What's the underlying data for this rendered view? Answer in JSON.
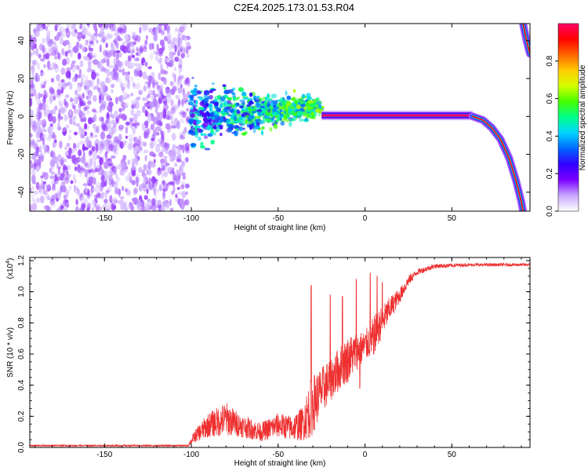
{
  "title": "C2E4.2025.173.01.53.R04",
  "chart_data": [
    {
      "type": "heatmap",
      "name": "spectrogram",
      "xlabel": "Height of straight line (km)",
      "ylabel": "Frequency (Hz)",
      "xlim": [
        -193,
        95
      ],
      "ylim": [
        -50,
        49
      ],
      "xticks": [
        -150,
        -100,
        -50,
        0,
        50
      ],
      "yticks": [
        -40,
        -20,
        0,
        20,
        40
      ],
      "colorbar": {
        "label": "Normalized spectral amplitude",
        "range": [
          0,
          1
        ],
        "ticks": [
          "0.0",
          "0.2",
          "0.4",
          "0.6",
          "0.8"
        ],
        "colormap": [
          "#ffffff",
          "#c9a8ff",
          "#7a00ff",
          "#3300ff",
          "#0066ff",
          "#00d4ff",
          "#00ff8c",
          "#44ff00",
          "#d4ff00",
          "#ffcc00",
          "#ff6600",
          "#ff0000",
          "#ff0066"
        ]
      },
      "regions": {
        "noise": {
          "x": [
            -193,
            -101
          ],
          "freq": [
            -50,
            49
          ],
          "amplitude": [
            0.05,
            0.15
          ]
        },
        "turbulent": {
          "x": [
            -101,
            -25
          ],
          "freq_center": [
            1,
            5
          ],
          "spread": [
            8,
            2
          ],
          "amplitude": [
            0.15,
            0.5
          ]
        },
        "tone": {
          "x": [
            -25,
            62
          ],
          "freq": 0.5,
          "amplitude": 1.0
        },
        "falloff": [
          {
            "x": 62,
            "freq": 0
          },
          {
            "x": 68,
            "freq": -2
          },
          {
            "x": 73,
            "freq": -6
          },
          {
            "x": 78,
            "freq": -12
          },
          {
            "x": 83,
            "freq": -22
          },
          {
            "x": 87,
            "freq": -34
          },
          {
            "x": 90,
            "freq": -45
          },
          {
            "x": 91,
            "freq": -50
          }
        ],
        "alias": [
          {
            "x": 91,
            "freq": 49
          },
          {
            "x": 93,
            "freq": 40
          },
          {
            "x": 95,
            "freq": 33
          }
        ]
      }
    },
    {
      "type": "line",
      "name": "snr",
      "xlabel": "Height of straight line (km)",
      "ylabel": "SNR (10 * v/v)",
      "ylabel_multiplier": "(x10",
      "ylabel_exponent": "4",
      "ylabel_suffix": ")",
      "xlim": [
        -193,
        95
      ],
      "ylim": [
        0,
        1.22
      ],
      "xticks": [
        -150,
        -100,
        -50,
        0,
        50
      ],
      "yticks": [
        "0.0",
        "0.2",
        "0.4",
        "0.6",
        "0.8",
        "1.0",
        "1.2"
      ],
      "color": "#ee3030",
      "envelope": [
        {
          "x": -193,
          "base": 0.01,
          "spread": 0.01
        },
        {
          "x": -102,
          "base": 0.01,
          "spread": 0.01
        },
        {
          "x": -98,
          "base": 0.06,
          "spread": 0.08
        },
        {
          "x": -90,
          "base": 0.12,
          "spread": 0.16
        },
        {
          "x": -80,
          "base": 0.15,
          "spread": 0.22
        },
        {
          "x": -72,
          "base": 0.12,
          "spread": 0.15
        },
        {
          "x": -60,
          "base": 0.08,
          "spread": 0.12
        },
        {
          "x": -50,
          "base": 0.12,
          "spread": 0.16
        },
        {
          "x": -42,
          "base": 0.1,
          "spread": 0.16
        },
        {
          "x": -36,
          "base": 0.12,
          "spread": 0.22
        },
        {
          "x": -31,
          "base": 0.2,
          "spread": 0.4
        },
        {
          "x": -25,
          "base": 0.32,
          "spread": 0.3
        },
        {
          "x": -18,
          "base": 0.42,
          "spread": 0.28
        },
        {
          "x": -10,
          "base": 0.52,
          "spread": 0.3
        },
        {
          "x": -5,
          "base": 0.58,
          "spread": 0.25
        },
        {
          "x": 0,
          "base": 0.62,
          "spread": 0.2
        },
        {
          "x": 5,
          "base": 0.68,
          "spread": 0.25
        },
        {
          "x": 10,
          "base": 0.78,
          "spread": 0.2
        },
        {
          "x": 15,
          "base": 0.88,
          "spread": 0.15
        },
        {
          "x": 20,
          "base": 0.96,
          "spread": 0.1
        },
        {
          "x": 25,
          "base": 1.06,
          "spread": 0.07
        },
        {
          "x": 30,
          "base": 1.12,
          "spread": 0.04
        },
        {
          "x": 40,
          "base": 1.16,
          "spread": 0.03
        },
        {
          "x": 60,
          "base": 1.17,
          "spread": 0.02
        },
        {
          "x": 95,
          "base": 1.17,
          "spread": 0.02
        }
      ],
      "spikes": [
        {
          "x": -31,
          "y": 1.04
        },
        {
          "x": -20,
          "y": 0.98
        },
        {
          "x": -13,
          "y": 0.97
        },
        {
          "x": -5,
          "y": 1.08
        },
        {
          "x": 3,
          "y": 1.12
        },
        {
          "x": 7,
          "y": 1.1
        },
        {
          "x": 10,
          "y": 1.06
        },
        {
          "x": -3,
          "y": 0.38
        },
        {
          "x": 5,
          "y": 0.6
        }
      ]
    }
  ]
}
